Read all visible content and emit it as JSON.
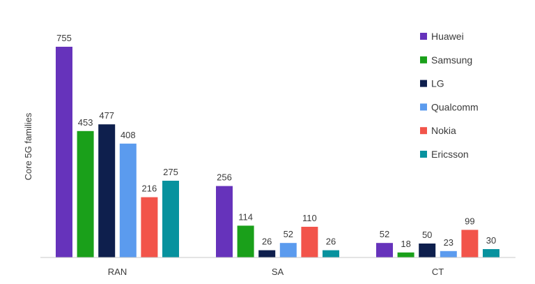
{
  "chart_data": {
    "type": "bar",
    "ylabel": "Core 5G families",
    "xlabel": "",
    "categories": [
      "RAN",
      "SA",
      "CT"
    ],
    "ylim": [
      0,
      760
    ],
    "grid": false,
    "legend_position": "top-right",
    "series": [
      {
        "name": "Huawei",
        "color": "#6633bb",
        "values": [
          755,
          256,
          52
        ]
      },
      {
        "name": "Samsung",
        "color": "#1aa01a",
        "values": [
          453,
          114,
          18
        ]
      },
      {
        "name": "LG",
        "color": "#0e1f4d",
        "values": [
          477,
          26,
          50
        ]
      },
      {
        "name": "Qualcomm",
        "color": "#5b9bee",
        "values": [
          408,
          52,
          23
        ]
      },
      {
        "name": "Nokia",
        "color": "#f2544a",
        "values": [
          216,
          110,
          99
        ]
      },
      {
        "name": "Ericsson",
        "color": "#07929e",
        "values": [
          275,
          26,
          30
        ]
      }
    ]
  },
  "colors": {
    "axis_line": "#c8c8c8",
    "text": "#3a3a3a"
  }
}
